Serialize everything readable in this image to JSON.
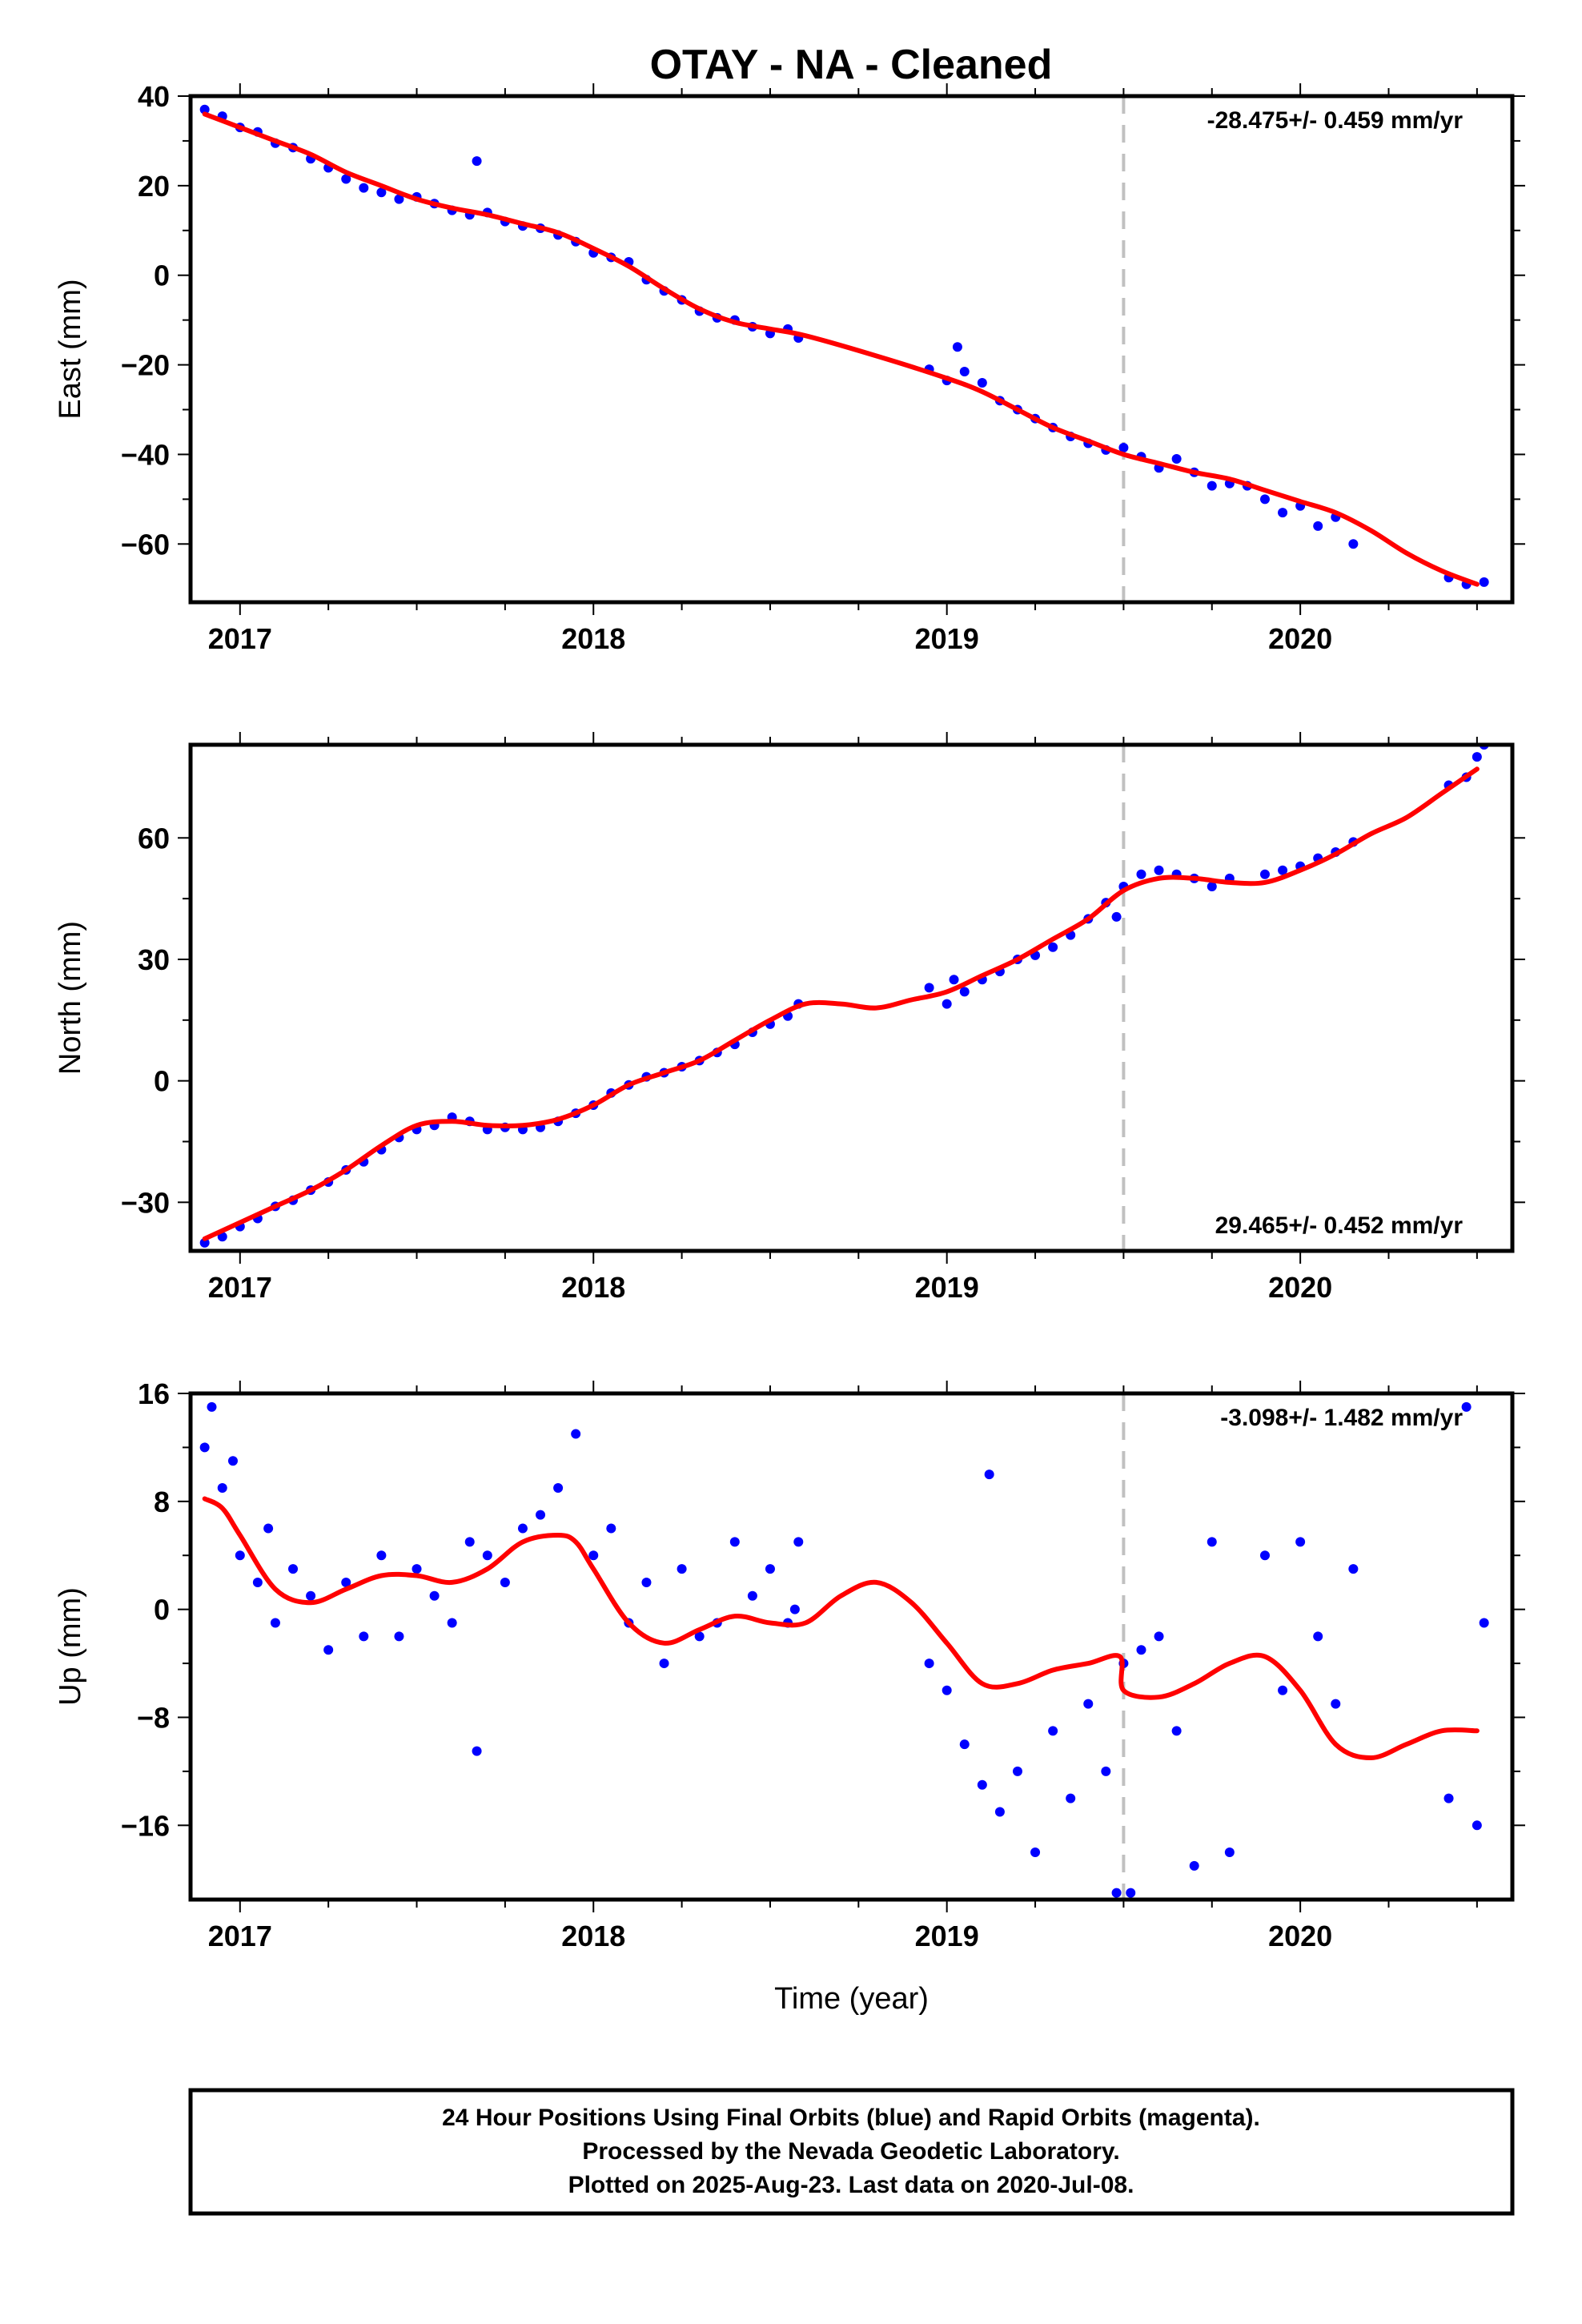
{
  "title": "OTAY  - NA - Cleaned",
  "footer": {
    "lines": [
      "24 Hour Positions Using Final Orbits (blue) and Rapid Orbits (magenta).",
      "Processed by the Nevada Geodetic Laboratory.",
      "Plotted on 2025-Aug-23. Last data on 2020-Jul-08."
    ]
  },
  "colors": {
    "points": "#0000ff",
    "fit": "#ff0000",
    "event_line": "#c0c0c0",
    "frame": "#000000"
  },
  "chart_data": [
    {
      "type": "scatter",
      "component": "east",
      "ylabel": "East (mm)",
      "xlabel": "",
      "rate_text": "-28.475+/- 0.459 mm/yr",
      "rate_position": "top-right",
      "xlim": [
        2016.86,
        2020.6
      ],
      "ylim": [
        -73,
        40
      ],
      "xticks": [
        2017,
        2018,
        2019,
        2020
      ],
      "xtick_labels": [
        "2017",
        "2018",
        "2019",
        "2020"
      ],
      "yticks": [
        40,
        20,
        0,
        -20,
        -40,
        -60
      ],
      "ytick_labels": [
        "40",
        "20",
        "0",
        "−20",
        "−40",
        "−60"
      ],
      "event_line_x": 2019.5,
      "series": [
        {
          "kind": "fit",
          "x": [
            2016.9,
            2017.0,
            2017.1,
            2017.2,
            2017.3,
            2017.4,
            2017.5,
            2017.6,
            2017.7,
            2017.8,
            2017.9,
            2018.0,
            2018.1,
            2018.2,
            2018.3,
            2018.4,
            2018.5,
            2018.6,
            2018.8,
            2019.0,
            2019.1,
            2019.2,
            2019.3,
            2019.4,
            2019.5,
            2019.6,
            2019.7,
            2019.8,
            2019.9,
            2020.0,
            2020.1,
            2020.2,
            2020.3,
            2020.4,
            2020.5
          ],
          "y": [
            36,
            33,
            30,
            27,
            23,
            20,
            17,
            15,
            13.5,
            11.5,
            9.5,
            6,
            2,
            -3,
            -7.5,
            -10.5,
            -12,
            -13.5,
            -18,
            -23,
            -26,
            -30,
            -34,
            -37,
            -40,
            -42,
            -44,
            -45.5,
            -48,
            -50.5,
            -53,
            -57,
            -62,
            -66,
            -69
          ]
        },
        {
          "kind": "observed",
          "x": [
            2016.9,
            2016.95,
            2017.0,
            2017.05,
            2017.1,
            2017.15,
            2017.2,
            2017.25,
            2017.3,
            2017.35,
            2017.4,
            2017.45,
            2017.5,
            2017.55,
            2017.6,
            2017.65,
            2017.67,
            2017.7,
            2017.75,
            2017.8,
            2017.85,
            2017.9,
            2017.95,
            2018.0,
            2018.05,
            2018.1,
            2018.15,
            2018.2,
            2018.25,
            2018.3,
            2018.35,
            2018.4,
            2018.45,
            2018.5,
            2018.55,
            2018.58,
            2018.95,
            2019.0,
            2019.03,
            2019.05,
            2019.1,
            2019.15,
            2019.2,
            2019.25,
            2019.3,
            2019.35,
            2019.4,
            2019.45,
            2019.5,
            2019.55,
            2019.6,
            2019.65,
            2019.7,
            2019.75,
            2019.8,
            2019.85,
            2019.9,
            2019.95,
            2020.0,
            2020.05,
            2020.1,
            2020.15,
            2020.42,
            2020.47,
            2020.52
          ],
          "y": [
            37,
            35.5,
            33,
            32,
            29.5,
            28.5,
            26,
            24,
            21.5,
            19.5,
            18.5,
            17,
            17.5,
            16,
            14.5,
            13.5,
            25.5,
            14,
            12,
            11,
            10.5,
            9,
            7.5,
            5,
            4,
            3,
            -1,
            -3.5,
            -5.5,
            -8,
            -9.5,
            -10,
            -11.5,
            -13,
            -12,
            -14,
            -21,
            -23.5,
            -16,
            -21.5,
            -24,
            -28,
            -30,
            -32,
            -34,
            -36,
            -37.5,
            -39,
            -38.5,
            -40.5,
            -43,
            -41,
            -44,
            -47,
            -46.5,
            -47,
            -50,
            -53,
            -51.5,
            -56,
            -54,
            -60,
            -67.5,
            -69,
            -68.5
          ]
        }
      ]
    },
    {
      "type": "scatter",
      "component": "north",
      "ylabel": "North (mm)",
      "xlabel": "",
      "rate_text": "29.465+/- 0.452 mm/yr",
      "rate_position": "bottom-right",
      "xlim": [
        2016.86,
        2020.6
      ],
      "ylim": [
        -42,
        83
      ],
      "xticks": [
        2017,
        2018,
        2019,
        2020
      ],
      "xtick_labels": [
        "2017",
        "2018",
        "2019",
        "2020"
      ],
      "yticks": [
        60,
        30,
        0,
        -30
      ],
      "ytick_labels": [
        "60",
        "30",
        "0",
        "−30"
      ],
      "event_line_x": 2019.5,
      "series": [
        {
          "kind": "fit",
          "x": [
            2016.9,
            2017.0,
            2017.1,
            2017.2,
            2017.3,
            2017.4,
            2017.5,
            2017.6,
            2017.7,
            2017.8,
            2017.9,
            2018.0,
            2018.1,
            2018.2,
            2018.3,
            2018.4,
            2018.5,
            2018.6,
            2018.7,
            2018.8,
            2018.9,
            2019.0,
            2019.1,
            2019.2,
            2019.3,
            2019.4,
            2019.5,
            2019.6,
            2019.7,
            2019.8,
            2019.9,
            2020.0,
            2020.1,
            2020.2,
            2020.3,
            2020.4,
            2020.5
          ],
          "y": [
            -39,
            -35,
            -31,
            -27,
            -22,
            -16,
            -11,
            -10,
            -11,
            -11,
            -9.5,
            -6,
            -1,
            2,
            5,
            10,
            15,
            19,
            19,
            18,
            20,
            22,
            26,
            30,
            35,
            40,
            47,
            50,
            50,
            49,
            49,
            52,
            56,
            61,
            65,
            71,
            77
          ]
        },
        {
          "kind": "observed",
          "x": [
            2016.9,
            2016.95,
            2017.0,
            2017.05,
            2017.1,
            2017.15,
            2017.2,
            2017.25,
            2017.3,
            2017.35,
            2017.4,
            2017.45,
            2017.5,
            2017.55,
            2017.6,
            2017.65,
            2017.7,
            2017.75,
            2017.8,
            2017.85,
            2017.9,
            2017.95,
            2018.0,
            2018.05,
            2018.1,
            2018.15,
            2018.2,
            2018.25,
            2018.3,
            2018.35,
            2018.4,
            2018.45,
            2018.5,
            2018.55,
            2018.58,
            2018.95,
            2019.0,
            2019.02,
            2019.05,
            2019.1,
            2019.15,
            2019.2,
            2019.25,
            2019.3,
            2019.35,
            2019.4,
            2019.45,
            2019.48,
            2019.5,
            2019.55,
            2019.6,
            2019.65,
            2019.7,
            2019.75,
            2019.8,
            2019.9,
            2019.95,
            2020.0,
            2020.05,
            2020.1,
            2020.15,
            2020.42,
            2020.47,
            2020.5,
            2020.52
          ],
          "y": [
            -40,
            -38.5,
            -36,
            -34,
            -31,
            -29.5,
            -27,
            -25,
            -22,
            -20,
            -17,
            -14,
            -12,
            -11,
            -9,
            -10,
            -12,
            -11.5,
            -12,
            -11.5,
            -10,
            -8,
            -6,
            -3,
            -1,
            1,
            2,
            3.5,
            5,
            7,
            9,
            12,
            14,
            16,
            19,
            23,
            19,
            25,
            22,
            25,
            27,
            30,
            31,
            33,
            36,
            40,
            44,
            40.5,
            48,
            51,
            52,
            51,
            50,
            48,
            50,
            51,
            52,
            53,
            55,
            56.5,
            59,
            73,
            75,
            80,
            83
          ]
        }
      ]
    },
    {
      "type": "scatter",
      "component": "up",
      "ylabel": "Up (mm)",
      "xlabel": "Time (year)",
      "rate_text": "-3.098+/- 1.482 mm/yr",
      "rate_position": "top-right",
      "xlim": [
        2016.86,
        2020.6
      ],
      "ylim": [
        -21.5,
        16
      ],
      "xticks": [
        2017,
        2018,
        2019,
        2020
      ],
      "xtick_labels": [
        "2017",
        "2018",
        "2019",
        "2020"
      ],
      "yticks": [
        16,
        8,
        0,
        -8,
        -16
      ],
      "ytick_labels": [
        "16",
        "8",
        "0",
        "−8",
        "−16"
      ],
      "event_line_x": 2019.5,
      "series": [
        {
          "kind": "fit",
          "x": [
            2016.9,
            2016.95,
            2017.0,
            2017.1,
            2017.2,
            2017.3,
            2017.4,
            2017.5,
            2017.6,
            2017.7,
            2017.8,
            2017.9,
            2017.95,
            2018.0,
            2018.1,
            2018.2,
            2018.3,
            2018.4,
            2018.5,
            2018.6,
            2018.7,
            2018.8,
            2018.9,
            2019.0,
            2019.1,
            2019.2,
            2019.3,
            2019.4,
            2019.49,
            2019.5,
            2019.6,
            2019.7,
            2019.8,
            2019.9,
            2020.0,
            2020.1,
            2020.2,
            2020.3,
            2020.4,
            2020.5
          ],
          "y": [
            8.2,
            7.5,
            5.5,
            1.5,
            0.5,
            1.5,
            2.5,
            2.5,
            2,
            3,
            5,
            5.5,
            5,
            3,
            -1,
            -2.5,
            -1.5,
            -0.5,
            -1,
            -1,
            1,
            2,
            0.5,
            -2.5,
            -5.5,
            -5.5,
            -4.5,
            -4,
            -3.5,
            -6,
            -6.5,
            -5.5,
            -4,
            -3.5,
            -6,
            -10,
            -11,
            -10,
            -9,
            -9
          ]
        },
        {
          "kind": "observed",
          "x": [
            2016.9,
            2016.92,
            2016.95,
            2016.98,
            2017.0,
            2017.05,
            2017.08,
            2017.1,
            2017.15,
            2017.2,
            2017.25,
            2017.3,
            2017.35,
            2017.4,
            2017.45,
            2017.5,
            2017.55,
            2017.6,
            2017.65,
            2017.67,
            2017.7,
            2017.75,
            2017.8,
            2017.85,
            2017.9,
            2017.95,
            2018.0,
            2018.05,
            2018.1,
            2018.15,
            2018.2,
            2018.25,
            2018.3,
            2018.35,
            2018.4,
            2018.45,
            2018.5,
            2018.55,
            2018.57,
            2018.58,
            2018.95,
            2019.0,
            2019.05,
            2019.1,
            2019.12,
            2019.15,
            2019.2,
            2019.25,
            2019.3,
            2019.35,
            2019.4,
            2019.45,
            2019.48,
            2019.5,
            2019.52,
            2019.55,
            2019.6,
            2019.65,
            2019.7,
            2019.75,
            2019.8,
            2019.9,
            2019.95,
            2020.0,
            2020.05,
            2020.1,
            2020.15,
            2020.42,
            2020.47,
            2020.5,
            2020.52
          ],
          "y": [
            12,
            15,
            9,
            11,
            4,
            2,
            6,
            -1,
            3,
            1,
            -3,
            2,
            -2,
            4,
            -2,
            3,
            1,
            -1,
            5,
            -10.5,
            4,
            2,
            6,
            7,
            9,
            13,
            4,
            6,
            -1,
            2,
            -4,
            3,
            -2,
            -1,
            5,
            1,
            3,
            -1,
            0,
            5,
            -4,
            -6,
            -10,
            -13,
            10,
            -15,
            -12,
            -18,
            -9,
            -14,
            -7,
            -12,
            -21,
            -4,
            -21,
            -3,
            -2,
            -9,
            -19,
            5,
            -18,
            4,
            -6,
            5,
            -2,
            -7,
            3,
            -14,
            15,
            -16,
            -1
          ]
        }
      ]
    }
  ]
}
